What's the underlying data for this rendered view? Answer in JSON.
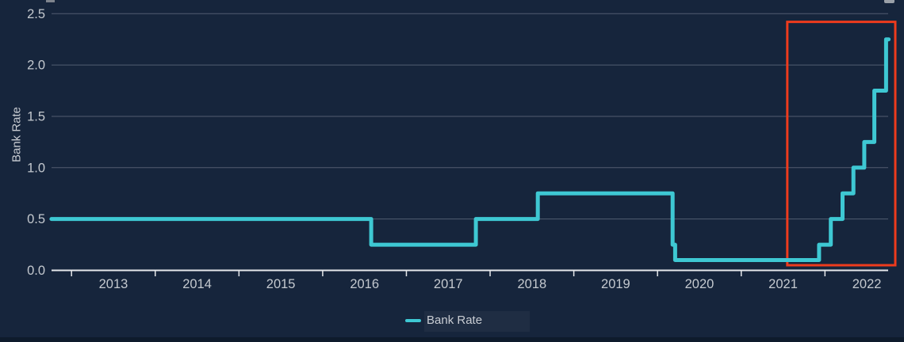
{
  "colors": {
    "background": "#16253C",
    "series_teal": "#3EC8D3",
    "annotation_red": "#EE3B1D",
    "gridline": "#525D70",
    "axis_line": "#E6E8EB",
    "text": "#C4C9CF"
  },
  "legend": {
    "label": "Bank Rate"
  },
  "chart_data": {
    "type": "line",
    "step": true,
    "title": "",
    "xlabel": "",
    "ylabel": "Bank Rate",
    "ylim": [
      0.0,
      2.5
    ],
    "grid": true,
    "legend_position": "bottom-center",
    "y_ticks": [
      "0.0",
      "0.5",
      "1.0",
      "1.5",
      "2.0",
      "2.5"
    ],
    "x_tick_years": [
      2013,
      2014,
      2015,
      2016,
      2017,
      2018,
      2019,
      2020,
      2021,
      2022
    ],
    "x_tick_labels": [
      "2013",
      "2014",
      "2015",
      "2016",
      "2017",
      "2018",
      "2019",
      "2020",
      "2021",
      "2022"
    ],
    "x_range": [
      2012.76,
      2022.76
    ],
    "series": [
      {
        "name": "Bank Rate",
        "color": "#3EC8D3",
        "step_points": [
          {
            "t": 2012.76,
            "rate": 0.5
          },
          {
            "t": 2016.58,
            "rate": 0.25
          },
          {
            "t": 2017.83,
            "rate": 0.5
          },
          {
            "t": 2018.57,
            "rate": 0.75
          },
          {
            "t": 2020.18,
            "rate": 0.25
          },
          {
            "t": 2020.21,
            "rate": 0.1
          },
          {
            "t": 2021.93,
            "rate": 0.25
          },
          {
            "t": 2022.07,
            "rate": 0.5
          },
          {
            "t": 2022.21,
            "rate": 0.75
          },
          {
            "t": 2022.34,
            "rate": 1.0
          },
          {
            "t": 2022.47,
            "rate": 1.25
          },
          {
            "t": 2022.59,
            "rate": 1.75
          },
          {
            "t": 2022.73,
            "rate": 2.25
          }
        ],
        "t_end": 2022.76
      }
    ],
    "annotation_box": {
      "t0": 2021.55,
      "t1": 2022.84,
      "rate0": 0.05,
      "rate1": 2.42,
      "color": "#EE3B1D"
    }
  }
}
